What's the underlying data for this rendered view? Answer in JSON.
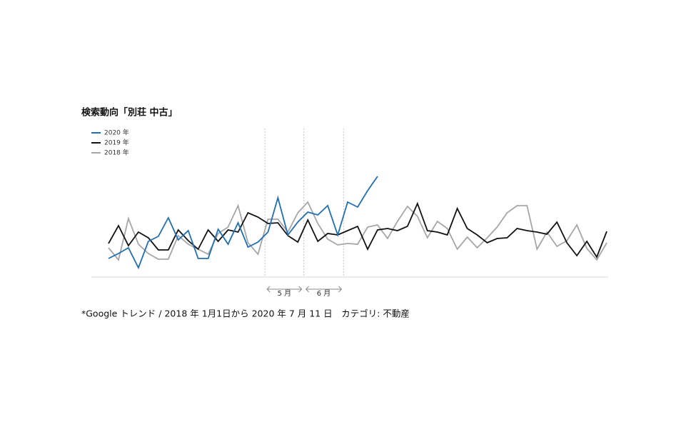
{
  "chart_data": {
    "type": "line",
    "title": "検索動向「別荘 中古」",
    "footnote": "*Google トレンド / 2018 年 1月1日から 2020 年 7 月 11 日　カテゴリ: 不動産",
    "categories": [
      null,
      null,
      null,
      null,
      null,
      null,
      null,
      null,
      null,
      null,
      null,
      null,
      null,
      null,
      null,
      null,
      null,
      null,
      null,
      null,
      null,
      null,
      null,
      null,
      null,
      null,
      null,
      null,
      null,
      null,
      null,
      null,
      null,
      null,
      null,
      null,
      null,
      null,
      null,
      null,
      null,
      null,
      null,
      null,
      null,
      null,
      null,
      null,
      null,
      null,
      null
    ],
    "series": [
      {
        "name": "2020 年",
        "color": "#1f6fb5",
        "values": [
          26,
          33,
          41,
          13,
          50,
          57,
          83,
          52,
          65,
          26,
          26,
          67,
          46,
          76,
          42,
          49,
          63,
          111,
          59,
          77,
          91,
          87,
          100,
          59,
          105,
          98,
          121,
          141,
          null,
          null,
          null,
          null,
          null,
          null,
          null,
          null,
          null,
          null,
          null,
          null,
          null,
          null,
          null,
          null,
          null,
          null,
          null,
          null,
          null,
          null,
          null
        ]
      },
      {
        "name": "2019 年",
        "color": "#111111",
        "values": [
          47,
          72,
          44,
          63,
          55,
          38,
          38,
          66,
          51,
          39,
          66,
          50,
          66,
          63,
          90,
          84,
          75,
          76,
          58,
          49,
          80,
          50,
          61,
          59,
          65,
          71,
          39,
          66,
          68,
          65,
          71,
          103,
          65,
          63,
          59,
          96,
          68,
          59,
          48,
          54,
          55,
          68,
          65,
          63,
          60,
          77,
          48,
          30,
          50,
          28,
          64
        ]
      },
      {
        "name": "2018 年",
        "color": "#a6a6a6",
        "values": [
          41,
          24,
          82,
          46,
          33,
          25,
          25,
          58,
          46,
          39,
          32,
          61,
          70,
          100,
          48,
          32,
          81,
          81,
          63,
          90,
          105,
          75,
          53,
          45,
          47,
          46,
          70,
          73,
          54,
          78,
          99,
          85,
          55,
          78,
          68,
          39,
          56,
          41,
          55,
          70,
          90,
          100,
          100,
          39,
          63,
          43,
          51,
          73,
          40,
          24,
          48
        ]
      }
    ],
    "markers": [
      {
        "label": "5 月",
        "from": 15.7,
        "to": 19.6
      },
      {
        "label": "6 月",
        "from": 19.6,
        "to": 23.6
      }
    ],
    "ylim": [
      0,
      160
    ],
    "legend": "top-left"
  }
}
